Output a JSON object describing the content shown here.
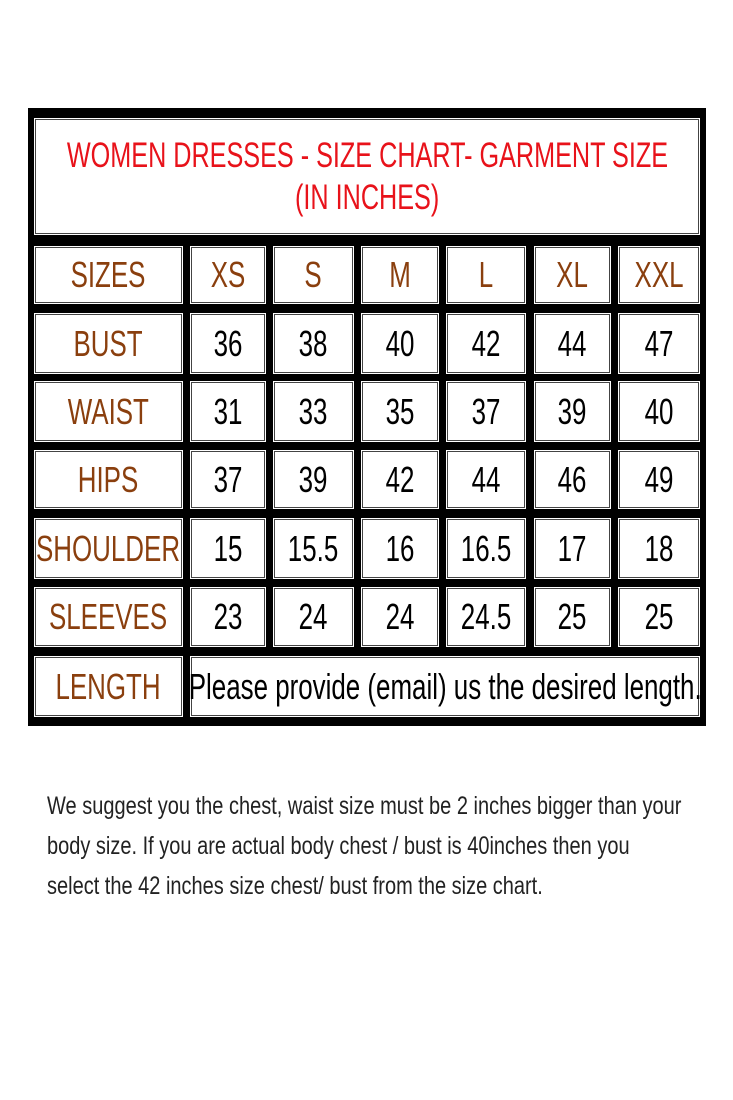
{
  "title": {
    "line1": "WOMEN DRESSES - SIZE CHART- GARMENT SIZE",
    "line2": "(IN INCHES)"
  },
  "table": {
    "header_label": "SIZES",
    "sizes": [
      "XS",
      "S",
      "M",
      "L",
      "XL",
      "XXL"
    ],
    "rows": [
      {
        "label": "BUST",
        "values": [
          "36",
          "38",
          "40",
          "42",
          "44",
          "47"
        ]
      },
      {
        "label": "WAIST",
        "values": [
          "31",
          "33",
          "35",
          "37",
          "39",
          "40"
        ]
      },
      {
        "label": "HIPS",
        "values": [
          "37",
          "39",
          "42",
          "44",
          "46",
          "49"
        ]
      },
      {
        "label": "SHOULDER",
        "values": [
          "15",
          "15.5",
          "16",
          "16.5",
          "17",
          "18"
        ]
      },
      {
        "label": "SLEEVES",
        "values": [
          "23",
          "24",
          "24",
          "24.5",
          "25",
          "25"
        ]
      }
    ],
    "length_label": "LENGTH",
    "length_note": "Please provide (email) us the desired length."
  },
  "note": {
    "lines": [
      "We suggest you the chest, waist size must be 2 inches bigger than your",
      "body size. If you are actual body chest / bust is 40inches then you",
      "select the 42 inches size chest/ bust from the size chart."
    ]
  },
  "colors": {
    "title": "#e8121a",
    "labels": "#8a3f0e",
    "values": "#000000",
    "border": "#000000"
  }
}
